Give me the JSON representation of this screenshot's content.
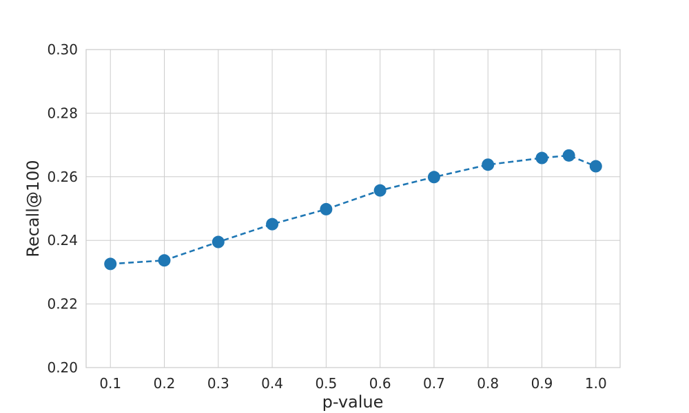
{
  "chart_data": {
    "type": "line",
    "title": "",
    "xlabel": "p-value",
    "ylabel": "Recall@100",
    "xlim": [
      0.055,
      1.045
    ],
    "ylim": [
      0.2,
      0.3
    ],
    "x_ticks": [
      0.1,
      0.2,
      0.3,
      0.4,
      0.5,
      0.6,
      0.7,
      0.8,
      0.9,
      1.0
    ],
    "x_tick_labels": [
      "0.1",
      "0.2",
      "0.3",
      "0.4",
      "0.5",
      "0.6",
      "0.7",
      "0.8",
      "0.9",
      "1.0"
    ],
    "y_ticks": [
      0.2,
      0.22,
      0.24,
      0.26,
      0.28,
      0.3
    ],
    "y_tick_labels": [
      "0.20",
      "0.22",
      "0.24",
      "0.26",
      "0.28",
      "0.30"
    ],
    "grid": true,
    "legend": "none",
    "series": [
      {
        "color": "#1f77b4",
        "line_style": "dashed",
        "marker": "circle",
        "x": [
          0.1,
          0.2,
          0.3,
          0.4,
          0.5,
          0.6,
          0.7,
          0.8,
          0.9,
          0.95,
          1.0
        ],
        "y": [
          0.2326,
          0.2337,
          0.2395,
          0.2451,
          0.2498,
          0.2557,
          0.2599,
          0.2638,
          0.2659,
          0.2667,
          0.2633
        ]
      }
    ]
  }
}
